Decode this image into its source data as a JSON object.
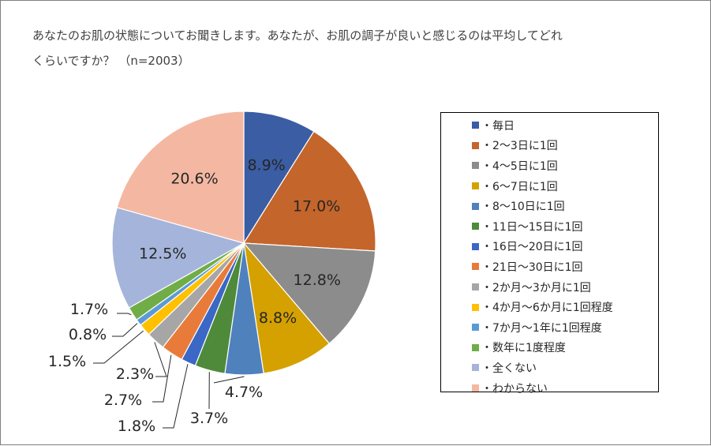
{
  "title": {
    "line1": "あなたのお肌の状態についてお聞きします。あなたが、お肌の調子が良いと感じるのは平均してどれ",
    "line2": "くらいですか？ （n=2003）"
  },
  "chart_data": {
    "type": "pie",
    "title": "あなたのお肌の状態についてお聞きします。あなたが、お肌の調子が良いと感じるのは平均してどれくらいですか？ （n=2003）",
    "legend_position": "right",
    "start_angle_deg": 0,
    "direction": "clockwise",
    "slices": [
      {
        "label": "・毎日",
        "value": 8.9,
        "value_label": "8.9%",
        "color": "#3A5DA3",
        "label_mode": "inside"
      },
      {
        "label": "・2～3日に1回",
        "value": 17.0,
        "value_label": "17.0%",
        "color": "#C4652B",
        "label_mode": "inside"
      },
      {
        "label": "・4～5日に1回",
        "value": 12.8,
        "value_label": "12.8%",
        "color": "#8C8C8C",
        "label_mode": "inside"
      },
      {
        "label": "・6～7日に1回",
        "value": 8.8,
        "value_label": "8.8%",
        "color": "#D4A100",
        "label_mode": "inside"
      },
      {
        "label": "・8～10日に1回",
        "value": 4.7,
        "value_label": "4.7%",
        "color": "#4F81BD",
        "label_mode": "outside"
      },
      {
        "label": "・11日～15日に1回",
        "value": 3.7,
        "value_label": "3.7%",
        "color": "#4E8A3A",
        "label_mode": "outside"
      },
      {
        "label": "・16日～20日に1回",
        "value": 1.8,
        "value_label": "1.8%",
        "color": "#3B67C6",
        "label_mode": "outside"
      },
      {
        "label": "・21日～30日に1回",
        "value": 2.7,
        "value_label": "2.7%",
        "color": "#E87B3A",
        "label_mode": "outside"
      },
      {
        "label": "・2か月～3か月に1回",
        "value": 2.3,
        "value_label": "2.3%",
        "color": "#A6A6A6",
        "label_mode": "outside"
      },
      {
        "label": "・4か月～6か月に1回程度",
        "value": 1.5,
        "value_label": "1.5%",
        "color": "#FFC000",
        "label_mode": "outside"
      },
      {
        "label": "・7か月～1年に1回程度",
        "value": 0.8,
        "value_label": "0.8%",
        "color": "#5B9BD5",
        "label_mode": "outside"
      },
      {
        "label": "・数年に1度程度",
        "value": 1.7,
        "value_label": "1.7%",
        "color": "#70AD47",
        "label_mode": "outside"
      },
      {
        "label": "・全くない",
        "value": 12.5,
        "value_label": "12.5%",
        "color": "#A5B4DA",
        "label_mode": "inside"
      },
      {
        "label": "・わからない",
        "value": 20.6,
        "value_label": "20.6%",
        "color": "#F4B8A2",
        "label_mode": "inside"
      }
    ]
  }
}
